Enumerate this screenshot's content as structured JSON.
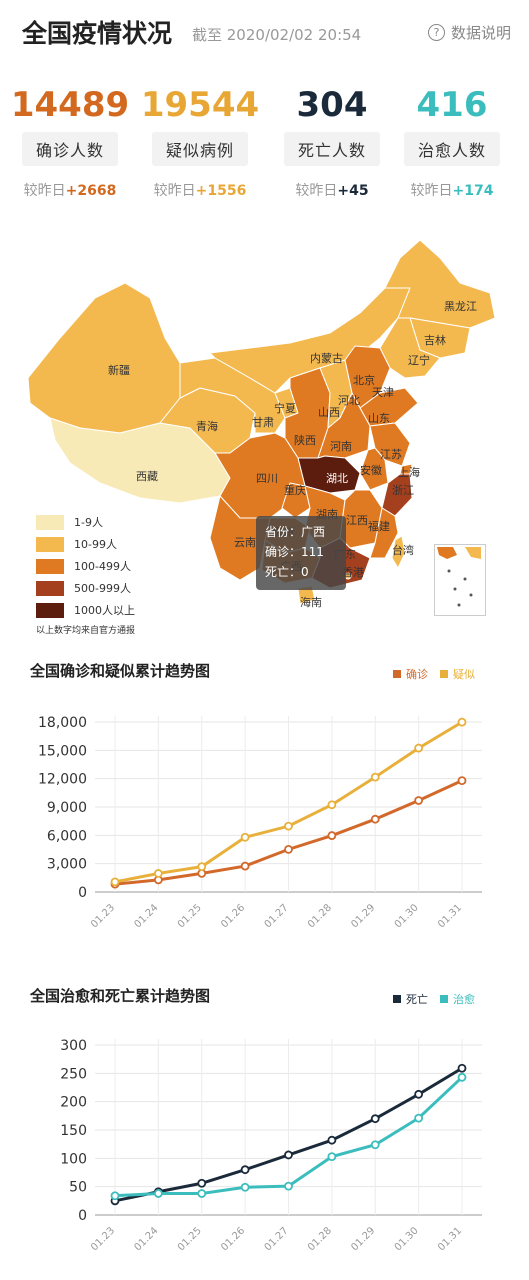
{
  "header": {
    "title": "全国疫情状况",
    "timestamp": "截至 2020/02/02 20:54",
    "help_label": "数据说明",
    "help_icon": "question-circle-icon"
  },
  "stats": [
    {
      "value": "14489",
      "label": "确诊人数",
      "delta_prefix": "较昨日",
      "delta": "+2668",
      "color": "#d2691e"
    },
    {
      "value": "19544",
      "label": "疑似病例",
      "delta_prefix": "较昨日",
      "delta": "+1556",
      "color": "#e8a735"
    },
    {
      "value": "304",
      "label": "死亡人数",
      "delta_prefix": "较昨日",
      "delta": "+45",
      "color": "#1b2a3a"
    },
    {
      "value": "416",
      "label": "治愈人数",
      "delta_prefix": "较昨日",
      "delta": "+174",
      "color": "#3bbdbd"
    }
  ],
  "map": {
    "provinces": [
      "黑龙江",
      "吉林",
      "辽宁",
      "内蒙古",
      "新疆",
      "北京",
      "天津",
      "河北",
      "山西",
      "山东",
      "宁夏",
      "甘肃",
      "青海",
      "陕西",
      "河南",
      "江苏",
      "上海",
      "安徽",
      "湖北",
      "浙江",
      "四川",
      "重庆",
      "湖南",
      "江西",
      "福建",
      "西藏",
      "云南",
      "贵州",
      "广西",
      "广东",
      "香港",
      "台湾",
      "海南"
    ],
    "legend": [
      {
        "label": "1-9人",
        "color": "#f8eab6"
      },
      {
        "label": "10-99人",
        "color": "#f3b94e"
      },
      {
        "label": "100-499人",
        "color": "#e07a22"
      },
      {
        "label": "500-999人",
        "color": "#a5401f"
      },
      {
        "label": "1000人以上",
        "color": "#5c1c0e"
      }
    ],
    "legend_note": "以上数字均来自官方通报",
    "tooltip": {
      "line1": "省份：广西",
      "line2": "确诊：111",
      "line3": "死亡：0"
    }
  },
  "chart_data": [
    {
      "type": "line",
      "title": "全国确诊和疑似累计趋势图",
      "categories": [
        "01.23",
        "01.24",
        "01.25",
        "01.26",
        "01.27",
        "01.28",
        "01.29",
        "01.30",
        "01.31"
      ],
      "series": [
        {
          "name": "确诊",
          "color": "#d2692a",
          "values": [
            830,
            1287,
            1975,
            2744,
            4515,
            5974,
            7711,
            9692,
            11791
          ]
        },
        {
          "name": "疑似",
          "color": "#e8b03a",
          "values": [
            1072,
            1965,
            2684,
            5794,
            6973,
            9239,
            12167,
            15238,
            17988
          ]
        }
      ],
      "ylim": [
        0,
        18000
      ],
      "yticks": [
        "0",
        "3,000",
        "6,000",
        "9,000",
        "12,000",
        "15,000",
        "18,000"
      ],
      "grid": true,
      "legend_position": "top-right"
    },
    {
      "type": "line",
      "title": "全国治愈和死亡累计趋势图",
      "categories": [
        "01.23",
        "01.24",
        "01.25",
        "01.26",
        "01.27",
        "01.28",
        "01.29",
        "01.30",
        "01.31"
      ],
      "series": [
        {
          "name": "死亡",
          "color": "#1b2a3a",
          "values": [
            25,
            41,
            56,
            80,
            106,
            132,
            170,
            213,
            259
          ]
        },
        {
          "name": "治愈",
          "color": "#3bbdbd",
          "values": [
            34,
            38,
            38,
            49,
            51,
            103,
            124,
            171,
            243
          ]
        }
      ],
      "ylim": [
        0,
        300
      ],
      "yticks": [
        "0",
        "50",
        "100",
        "150",
        "200",
        "250",
        "300"
      ],
      "grid": true,
      "legend_position": "top-right"
    }
  ]
}
